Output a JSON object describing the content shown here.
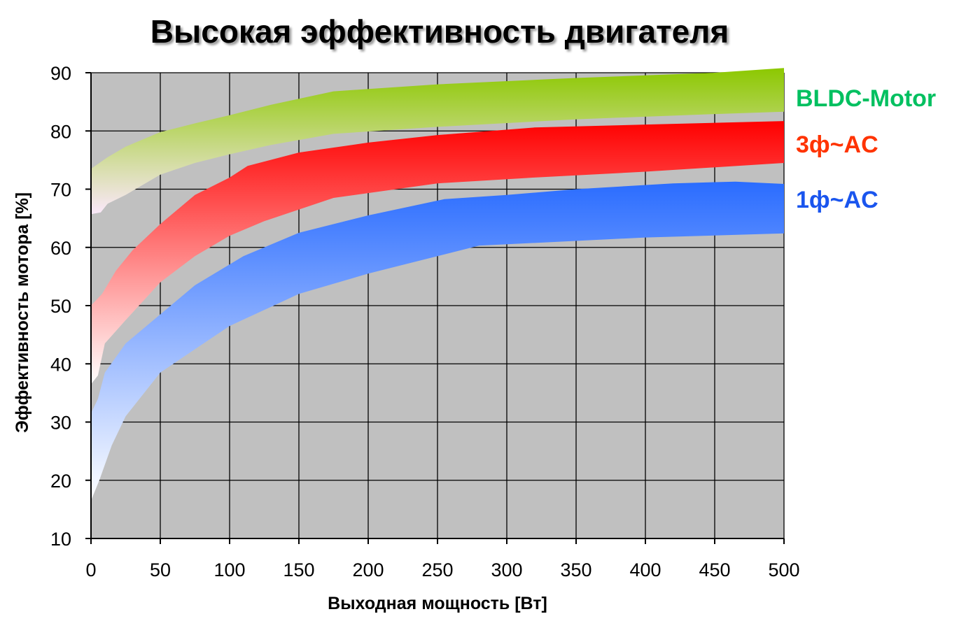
{
  "chart_data": {
    "type": "area",
    "title": "Высокая эффективность двигателя",
    "xlabel": "Выходная мощность [Вт]",
    "ylabel": "Эффективность мотора [%]",
    "xlim": [
      0,
      500
    ],
    "ylim": [
      10,
      90
    ],
    "xticks": [
      0,
      50,
      100,
      150,
      200,
      250,
      300,
      350,
      400,
      450,
      500
    ],
    "yticks": [
      10,
      20,
      30,
      40,
      50,
      60,
      70,
      80,
      90
    ],
    "grid": true,
    "plot_background": "#c0c0c0",
    "series": [
      {
        "name": "BLDC-Motor",
        "color": "#00c060",
        "fill_top_color": "#8cc800",
        "fill_bottom_color": "#fbe8fb",
        "upper": [
          [
            0,
            73.5
          ],
          [
            12,
            75.5
          ],
          [
            25,
            77.3
          ],
          [
            50,
            79.8
          ],
          [
            75,
            81.3
          ],
          [
            100,
            82.7
          ],
          [
            130,
            84.5
          ],
          [
            175,
            86.8
          ],
          [
            250,
            88.0
          ],
          [
            350,
            89.1
          ],
          [
            450,
            90.0
          ],
          [
            500,
            90.8
          ]
        ],
        "lower": [
          [
            0,
            65.7
          ],
          [
            7,
            66.0
          ],
          [
            12,
            67.5
          ],
          [
            25,
            69.0
          ],
          [
            50,
            72.5
          ],
          [
            75,
            74.5
          ],
          [
            100,
            76.0
          ],
          [
            130,
            77.6
          ],
          [
            175,
            79.5
          ],
          [
            250,
            80.7
          ],
          [
            350,
            82.0
          ],
          [
            450,
            82.9
          ],
          [
            500,
            83.3
          ]
        ]
      },
      {
        "name": "3ф~AC",
        "color": "#ff3300",
        "fill_top_color": "#ff0000",
        "fill_bottom_color": "#ffffff",
        "upper": [
          [
            0,
            50.0
          ],
          [
            8,
            52.0
          ],
          [
            18,
            56.0
          ],
          [
            30,
            59.5
          ],
          [
            50,
            64.0
          ],
          [
            75,
            69.0
          ],
          [
            100,
            72.0
          ],
          [
            113,
            74.0
          ],
          [
            150,
            76.3
          ],
          [
            200,
            78.0
          ],
          [
            250,
            79.3
          ],
          [
            320,
            80.6
          ],
          [
            400,
            81.1
          ],
          [
            500,
            81.7
          ]
        ],
        "lower": [
          [
            0,
            36.5
          ],
          [
            5,
            38.0
          ],
          [
            10,
            43.5
          ],
          [
            25,
            47.5
          ],
          [
            50,
            54.0
          ],
          [
            75,
            58.5
          ],
          [
            100,
            62.0
          ],
          [
            125,
            64.5
          ],
          [
            175,
            68.5
          ],
          [
            250,
            71.0
          ],
          [
            320,
            72.0
          ],
          [
            400,
            73.0
          ],
          [
            500,
            74.5
          ]
        ]
      },
      {
        "name": "1ф~AC",
        "color": "#1a55ee",
        "fill_top_color": "#2a6cff",
        "fill_bottom_color": "#ffffff",
        "upper": [
          [
            0,
            31.5
          ],
          [
            5,
            34.0
          ],
          [
            10,
            38.5
          ],
          [
            25,
            43.5
          ],
          [
            50,
            48.5
          ],
          [
            75,
            53.5
          ],
          [
            110,
            58.5
          ],
          [
            150,
            62.5
          ],
          [
            200,
            65.5
          ],
          [
            255,
            68.3
          ],
          [
            300,
            69.0
          ],
          [
            350,
            70.0
          ],
          [
            420,
            71.0
          ],
          [
            465,
            71.3
          ],
          [
            500,
            70.9
          ]
        ],
        "lower": [
          [
            0,
            16.5
          ],
          [
            6,
            20.0
          ],
          [
            15,
            26.0
          ],
          [
            25,
            31.0
          ],
          [
            50,
            38.5
          ],
          [
            75,
            42.5
          ],
          [
            100,
            46.5
          ],
          [
            150,
            52.0
          ],
          [
            200,
            55.5
          ],
          [
            280,
            60.3
          ],
          [
            400,
            61.7
          ],
          [
            500,
            62.4
          ]
        ]
      }
    ]
  }
}
